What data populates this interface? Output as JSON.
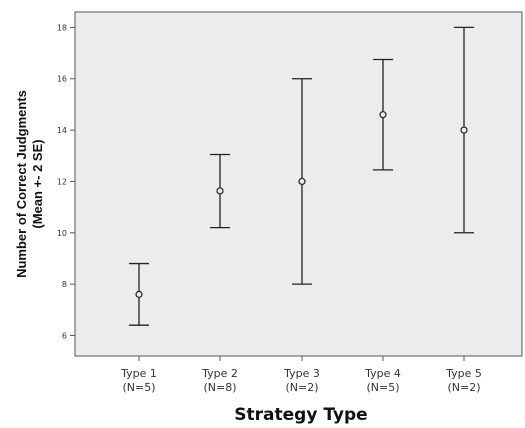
{
  "chart_data": {
    "type": "errorbar",
    "xlabel": "Strategy Type",
    "ylabel": "Number of Correct Judgments",
    "ylabel_sub": "(Mean +- 2 SE)",
    "ylim": [
      5.2,
      18.6
    ],
    "yticks": [
      6,
      8,
      10,
      12,
      14,
      16,
      18
    ],
    "categories": [
      {
        "line1": "Type 1",
        "line2": "(N=5)"
      },
      {
        "line1": "Type 2",
        "line2": "(N=8)"
      },
      {
        "line1": "Type 3",
        "line2": "(N=2)"
      },
      {
        "line1": "Type 4",
        "line2": "(N=5)"
      },
      {
        "line1": "Type 5",
        "line2": "(N=2)"
      }
    ],
    "mean": [
      7.6,
      11.63,
      12.0,
      14.6,
      14.0
    ],
    "lower": [
      6.4,
      10.2,
      8.0,
      12.45,
      10.0
    ],
    "upper": [
      8.8,
      13.05,
      16.0,
      16.75,
      18.0
    ],
    "grid": false,
    "colors": {
      "plot_background": "#ececec",
      "marks": "#222222",
      "frame": "#555555"
    }
  }
}
